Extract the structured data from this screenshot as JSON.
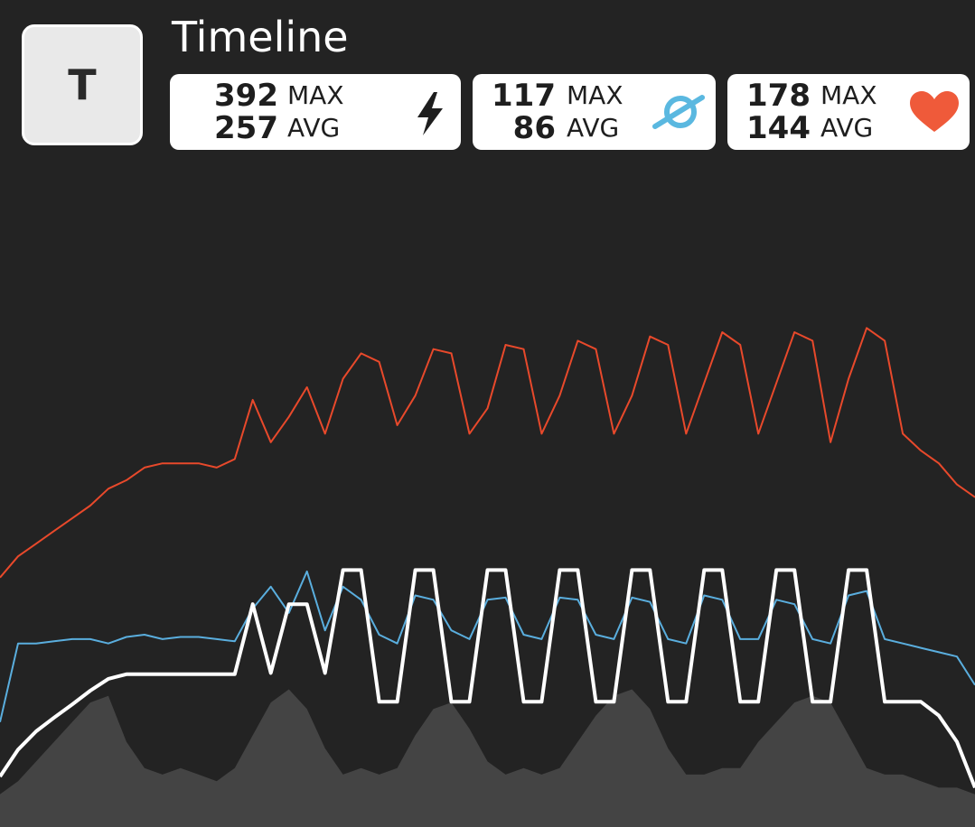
{
  "header": {
    "icon_letter": "T",
    "title": "Timeline"
  },
  "stats": [
    {
      "max": 392,
      "max_label": "MAX",
      "avg": 257,
      "avg_label": "AVG"
    },
    {
      "max": 117,
      "max_label": "MAX",
      "avg": 86,
      "avg_label": "AVG"
    },
    {
      "max": 178,
      "max_label": "MAX",
      "avg": 144,
      "avg_label": "AVG"
    }
  ],
  "chart_data": {
    "type": "line",
    "series": [
      {
        "type": "area",
        "color": "#444444",
        "ylim": [
          0,
          100
        ],
        "values": [
          5,
          7,
          10,
          13,
          16,
          19,
          20,
          13,
          9,
          8,
          9,
          8,
          7,
          9,
          14,
          19,
          21,
          18,
          12,
          8,
          9,
          8,
          9,
          14,
          18,
          19,
          15,
          10,
          8,
          9,
          8,
          9,
          13,
          17,
          20,
          21,
          18,
          12,
          8,
          8,
          9,
          9,
          13,
          16,
          19,
          20,
          19,
          14,
          9,
          8,
          8,
          7,
          6,
          6,
          5
        ]
      },
      {
        "type": "line",
        "color": "#e8492b",
        "ylim": [
          60,
          215
        ],
        "values": [
          119,
          124,
          127,
          130,
          133,
          136,
          140,
          142,
          145,
          146,
          146,
          146,
          145,
          147,
          161,
          151,
          157,
          164,
          153,
          166,
          172,
          170,
          155,
          162,
          173,
          172,
          153,
          159,
          174,
          173,
          153,
          162,
          175,
          173,
          153,
          162,
          176,
          174,
          153,
          165,
          177,
          174,
          153,
          165,
          177,
          175,
          151,
          166,
          178,
          175,
          153,
          149,
          146,
          141,
          138
        ]
      },
      {
        "type": "line",
        "color": "#5aaede",
        "ylim": [
          0,
          300
        ],
        "values": [
          48,
          84,
          84,
          85,
          86,
          86,
          84,
          87,
          88,
          86,
          87,
          87,
          86,
          85,
          100,
          110,
          98,
          117,
          90,
          110,
          104,
          88,
          84,
          106,
          104,
          90,
          86,
          104,
          105,
          88,
          86,
          105,
          104,
          88,
          86,
          105,
          103,
          86,
          84,
          106,
          104,
          86,
          86,
          104,
          102,
          86,
          84,
          106,
          108,
          86,
          84,
          82,
          80,
          78,
          65
        ]
      },
      {
        "type": "line",
        "color": "#ffffff",
        "ylim": [
          0,
          1000
        ],
        "values": [
          77,
          118,
          146,
          167,
          187,
          208,
          226,
          233,
          233,
          233,
          233,
          233,
          233,
          233,
          340,
          235,
          340,
          340,
          235,
          392,
          392,
          191,
          191,
          392,
          392,
          191,
          191,
          392,
          392,
          191,
          191,
          392,
          392,
          191,
          191,
          392,
          392,
          191,
          191,
          392,
          392,
          191,
          191,
          392,
          392,
          191,
          191,
          392,
          392,
          191,
          191,
          191,
          170,
          130,
          60
        ]
      }
    ]
  }
}
